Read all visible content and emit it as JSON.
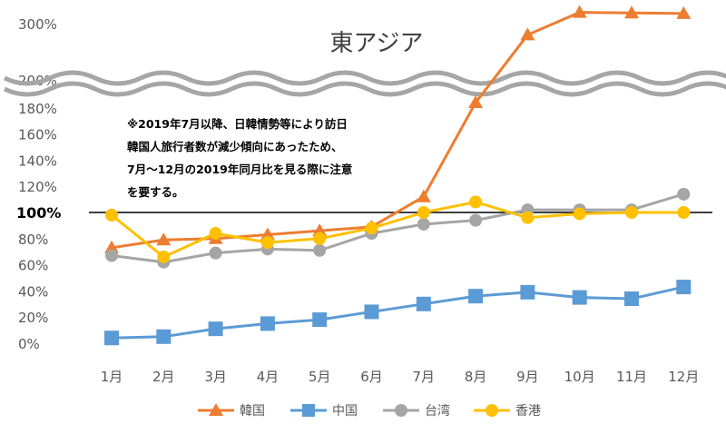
{
  "chart_data": {
    "type": "line",
    "title": "東アジア",
    "xlabel": "",
    "ylabel": "",
    "categories": [
      "1月",
      "2月",
      "3月",
      "4月",
      "5月",
      "6月",
      "7月",
      "8月",
      "9月",
      "10月",
      "11月",
      "12月"
    ],
    "y_axis": {
      "broken": true,
      "lower_range": [
        0,
        200
      ],
      "upper_range": [
        200,
        300
      ],
      "tick_labels": [
        "0%",
        "20%",
        "40%",
        "60%",
        "80%",
        "100%",
        "120%",
        "140%",
        "160%",
        "180%",
        "200%",
        "300%"
      ],
      "emphasized_tick": "100%"
    },
    "reference_line": 100,
    "grid": false,
    "legend_position": "bottom",
    "note": [
      "※2019年7月以降、日韓情勢等により訪日",
      "韓国人旅行者数が減少傾向にあったため、",
      "7月～12月の2019年同月比を見る際に注意",
      "を要する。"
    ],
    "series": [
      {
        "name": "韓国",
        "color": "#ED7D31",
        "marker": "triangle",
        "values": [
          73,
          79,
          80,
          83,
          86,
          89,
          112,
          184,
          280,
          320,
          319,
          318
        ]
      },
      {
        "name": "中国",
        "color": "#5B9BD5",
        "marker": "square",
        "values": [
          4,
          5,
          11,
          15,
          18,
          24,
          30,
          36,
          39,
          35,
          34,
          43
        ]
      },
      {
        "name": "台湾",
        "color": "#A5A5A5",
        "marker": "circle",
        "values": [
          67,
          62,
          69,
          72,
          71,
          84,
          91,
          94,
          102,
          102,
          102,
          114
        ]
      },
      {
        "name": "香港",
        "color": "#FFC000",
        "marker": "circle",
        "values": [
          98,
          66,
          84,
          77,
          80,
          88,
          100,
          108,
          96,
          99,
          100,
          100
        ]
      }
    ]
  }
}
